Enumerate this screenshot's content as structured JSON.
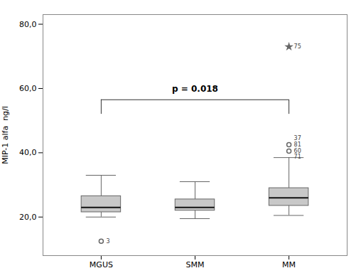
{
  "chart_data": {
    "type": "box",
    "categories": [
      "MGUS",
      "SMM",
      "MM"
    ],
    "ylabel": "MIP-1 alfa  ng/l",
    "ylim": [
      8,
      83
    ],
    "yticks": [
      {
        "value": 20.0,
        "label": "20,0"
      },
      {
        "value": 40.0,
        "label": "40,0"
      },
      {
        "value": 60.0,
        "label": "60,0"
      },
      {
        "value": 80.0,
        "label": "80,0"
      }
    ],
    "grid": false,
    "color": "#c8c8c8",
    "boxes": [
      {
        "whisker_low": 20.0,
        "q1": 21.5,
        "median": 23.0,
        "q3": 26.5,
        "whisker_high": 33.0,
        "outliers": [
          {
            "y": 12.5,
            "label": "3",
            "marker": "circle"
          }
        ]
      },
      {
        "whisker_low": 19.5,
        "q1": 22.0,
        "median": 23.0,
        "q3": 25.5,
        "whisker_high": 31.0,
        "outliers": []
      },
      {
        "whisker_low": 20.5,
        "q1": 23.5,
        "median": 26.0,
        "q3": 29.0,
        "whisker_high": 38.5,
        "outliers": [
          {
            "y": 44.5,
            "label": "37",
            "marker": "none"
          },
          {
            "y": 42.5,
            "label": "81",
            "marker": "circle"
          },
          {
            "y": 40.5,
            "label": "60",
            "marker": "circle"
          },
          {
            "y": 38.8,
            "label": "71",
            "marker": "none"
          },
          {
            "y": 73.0,
            "label": "75",
            "marker": "star"
          }
        ]
      }
    ],
    "annotations": [
      {
        "type": "bracket",
        "from": "MGUS",
        "to": "MM",
        "y": 56.5,
        "drop": 4.5,
        "text": "p = 0.018",
        "text_y": 59.0
      }
    ]
  }
}
